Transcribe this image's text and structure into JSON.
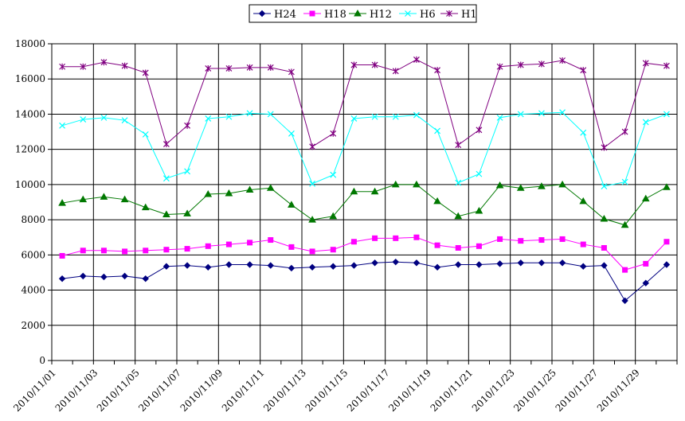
{
  "chart_data": {
    "type": "line",
    "x": [
      "2010/11/01",
      "2010/11/02",
      "2010/11/03",
      "2010/11/04",
      "2010/11/05",
      "2010/11/06",
      "2010/11/07",
      "2010/11/08",
      "2010/11/09",
      "2010/11/10",
      "2010/11/11",
      "2010/11/12",
      "2010/11/13",
      "2010/11/14",
      "2010/11/15",
      "2010/11/16",
      "2010/11/17",
      "2010/11/18",
      "2010/11/19",
      "2010/11/20",
      "2010/11/21",
      "2010/11/22",
      "2010/11/23",
      "2010/11/24",
      "2010/11/25",
      "2010/11/26",
      "2010/11/27",
      "2010/11/28",
      "2010/11/29",
      "2010/11/30"
    ],
    "x_tick_labels": [
      "2010/11/01",
      "2010/11/03",
      "2010/11/05",
      "2010/11/07",
      "2010/11/09",
      "2010/11/11",
      "2010/11/13",
      "2010/11/15",
      "2010/11/17",
      "2010/11/19",
      "2010/11/21",
      "2010/11/23",
      "2010/11/25",
      "2010/11/27",
      "2010/11/29"
    ],
    "y_tick_labels": [
      "0",
      "2000",
      "4000",
      "6000",
      "8000",
      "10000",
      "12000",
      "14000",
      "16000",
      "18000"
    ],
    "ylim": [
      0,
      18000
    ],
    "grid": true,
    "legend_position": "top",
    "series": [
      {
        "name": "H24",
        "color": "#000080",
        "marker": "diamond",
        "values": [
          4650,
          4800,
          4750,
          4800,
          4650,
          5350,
          5400,
          5300,
          5450,
          5450,
          5400,
          5250,
          5300,
          5350,
          5400,
          5550,
          5600,
          5550,
          5300,
          5450,
          5450,
          5500,
          5550,
          5550,
          5550,
          5350,
          5400,
          3400,
          4400,
          5450
        ]
      },
      {
        "name": "H18",
        "color": "#ff00ff",
        "marker": "square",
        "values": [
          5950,
          6250,
          6250,
          6200,
          6250,
          6300,
          6350,
          6500,
          6600,
          6700,
          6850,
          6450,
          6200,
          6300,
          6750,
          6950,
          6950,
          7000,
          6550,
          6400,
          6500,
          6900,
          6800,
          6850,
          6900,
          6600,
          6400,
          5150,
          5500,
          6750
        ]
      },
      {
        "name": "H12",
        "color": "#007800",
        "marker": "triangle",
        "values": [
          8950,
          9150,
          9300,
          9150,
          8700,
          8300,
          8350,
          9450,
          9500,
          9700,
          9800,
          8850,
          8000,
          8200,
          9600,
          9600,
          10000,
          10000,
          9050,
          8200,
          8500,
          9950,
          9800,
          9900,
          10000,
          9050,
          8050,
          7700,
          9200,
          9850
        ]
      },
      {
        "name": "H6",
        "color": "#00ffff",
        "marker": "x",
        "values": [
          13350,
          13700,
          13800,
          13650,
          12850,
          10350,
          10750,
          13750,
          13850,
          14050,
          14000,
          12900,
          10050,
          10550,
          13750,
          13850,
          13850,
          13950,
          13050,
          10100,
          10600,
          13800,
          14000,
          14050,
          14100,
          12950,
          9900,
          10150,
          13550,
          14000
        ]
      },
      {
        "name": "H1",
        "color": "#800080",
        "marker": "star",
        "values": [
          16700,
          16700,
          16950,
          16750,
          16350,
          12300,
          13350,
          16600,
          16600,
          16650,
          16650,
          16400,
          12150,
          12900,
          16800,
          16800,
          16450,
          17100,
          16500,
          12250,
          13100,
          16700,
          16800,
          16850,
          17050,
          16500,
          12100,
          13000,
          16900,
          16750
        ]
      }
    ]
  }
}
